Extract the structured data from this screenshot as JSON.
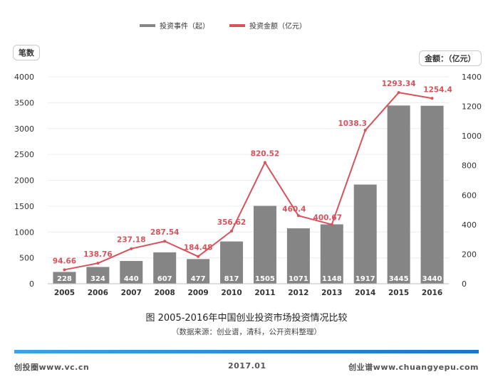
{
  "chart_data": {
    "type": "bar",
    "title": "图 2005-2016年中国创业投资市场投资情况比较",
    "subtitle": "（数据来源：创业谱，清科，公开资料整理）",
    "categories": [
      "2005",
      "2006",
      "2007",
      "2008",
      "2009",
      "2010",
      "2011",
      "2012",
      "2013",
      "2014",
      "2015",
      "2016"
    ],
    "series": [
      {
        "name": "投资事件（起）",
        "type": "bar",
        "axis": "left",
        "color": "#858585",
        "values": [
          228,
          324,
          440,
          607,
          477,
          817,
          1505,
          1071,
          1148,
          1917,
          3445,
          3440
        ],
        "labels": [
          "228",
          "324",
          "440",
          "607",
          "477",
          "817",
          "1505",
          "1071",
          "1148",
          "1917",
          "3445",
          "3440"
        ]
      },
      {
        "name": "投资金额（亿元）",
        "type": "line",
        "axis": "right",
        "color": "#d6535b",
        "values": [
          94.66,
          138.76,
          237.18,
          287.54,
          184.48,
          356.62,
          820.52,
          460.4,
          400.67,
          1038.3,
          1293.34,
          1254.4
        ],
        "labels": [
          "94.66",
          "138.76",
          "237.18",
          "287.54",
          "184.48",
          "356.62",
          "820.52",
          "460.4",
          "400.67",
          "1038.3",
          "1293.34",
          "1254.4"
        ]
      }
    ],
    "ylabel_left": "笔数",
    "ylabel_right": "金额：（亿元）",
    "ylim_left": [
      0,
      4000
    ],
    "yticks_left": [
      "0",
      "500",
      "1000",
      "1500",
      "2000",
      "2500",
      "3000",
      "3500",
      "4000"
    ],
    "ylim_right": [
      0,
      1400
    ],
    "yticks_right": [
      "0",
      "200",
      "400",
      "600",
      "800",
      "1000",
      "1200",
      "1400"
    ],
    "legend_position": "top-center"
  },
  "footer": {
    "left": "创投圈www.vc.cn",
    "center": "2017.01",
    "right": "创业谱www.chuangyepu.com"
  }
}
